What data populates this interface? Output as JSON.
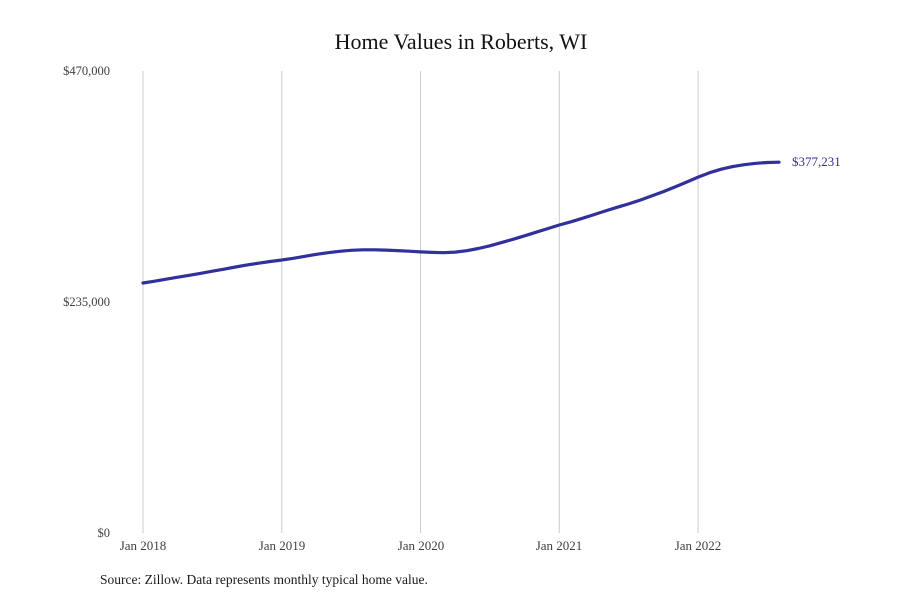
{
  "title": "Home Values in Roberts, WI",
  "source_note": "Source: Zillow. Data represents monthly typical home value.",
  "end_label": "$377,231",
  "colors": {
    "line": "#31319b",
    "end_label": "#31319b",
    "grid": "#cccccc",
    "tick_text": "#3f3f3f",
    "title_text": "#121212",
    "note_text": "#1a1a1a",
    "background": "#ffffff"
  },
  "chart_data": {
    "type": "line",
    "title": "Home Values in Roberts, WI",
    "xlabel": "",
    "ylabel": "",
    "ylim": [
      0,
      470000
    ],
    "grid": "vertical-only",
    "legend": "none",
    "x_start_month": "Jan 2018",
    "x_end_month": "Aug 2022",
    "x_tick_labels": [
      "Jan 2018",
      "Jan 2019",
      "Jan 2020",
      "Jan 2021",
      "Jan 2022"
    ],
    "x_tick_month_indices": [
      0,
      12,
      24,
      36,
      48
    ],
    "y_tick_labels": [
      "$0",
      "$235,000",
      "$470,000"
    ],
    "y_tick_values": [
      0,
      235000,
      470000
    ],
    "final_value": 377231,
    "final_value_label": "$377,231",
    "series": [
      {
        "name": "Monthly typical home value",
        "values": [
          254300,
          256200,
          258200,
          260200,
          262200,
          264200,
          266300,
          268400,
          270600,
          272700,
          274500,
          276200,
          277700,
          279500,
          281500,
          283500,
          285200,
          286600,
          287600,
          288100,
          288100,
          287800,
          287300,
          286700,
          286000,
          285500,
          285200,
          285800,
          287200,
          289400,
          292200,
          295400,
          298800,
          302300,
          306000,
          309700,
          313300,
          316600,
          320100,
          323900,
          327700,
          331300,
          334800,
          338700,
          342900,
          347300,
          352000,
          357000,
          362100,
          366500,
          370100,
          372700,
          374700,
          376100,
          376900,
          377231
        ]
      }
    ]
  }
}
